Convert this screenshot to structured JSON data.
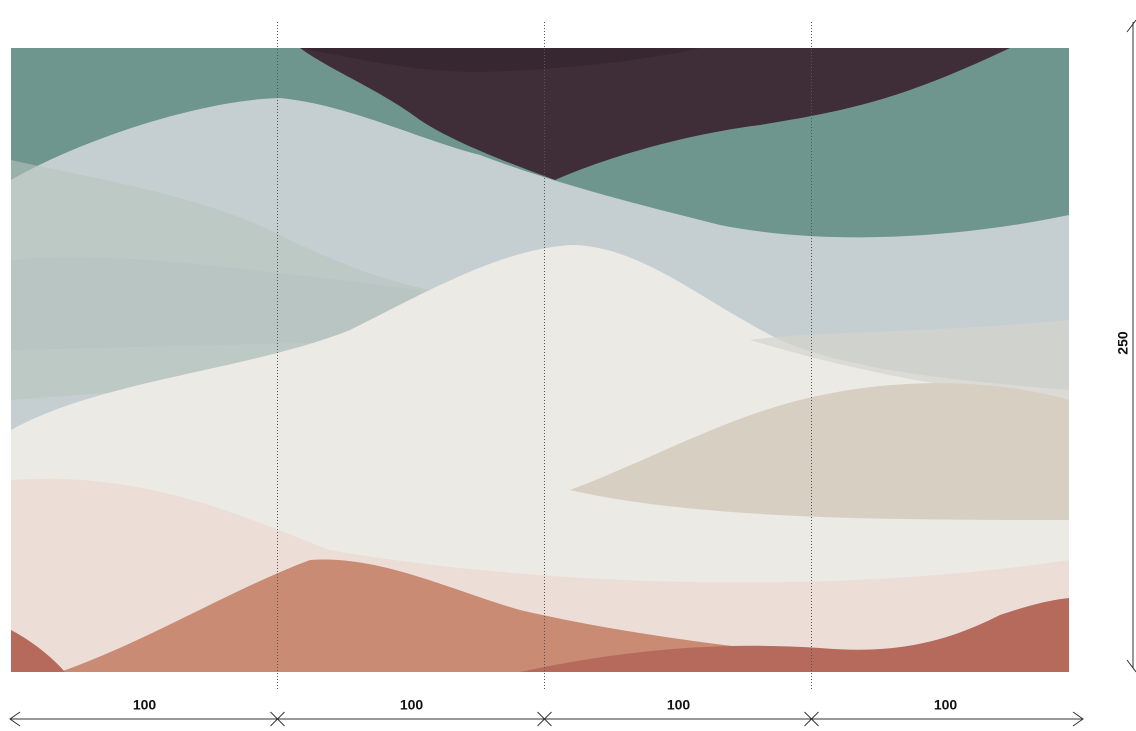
{
  "panels": [
    {
      "width": 100
    },
    {
      "width": 100
    },
    {
      "width": 100
    },
    {
      "width": 100
    }
  ],
  "height": 250
}
